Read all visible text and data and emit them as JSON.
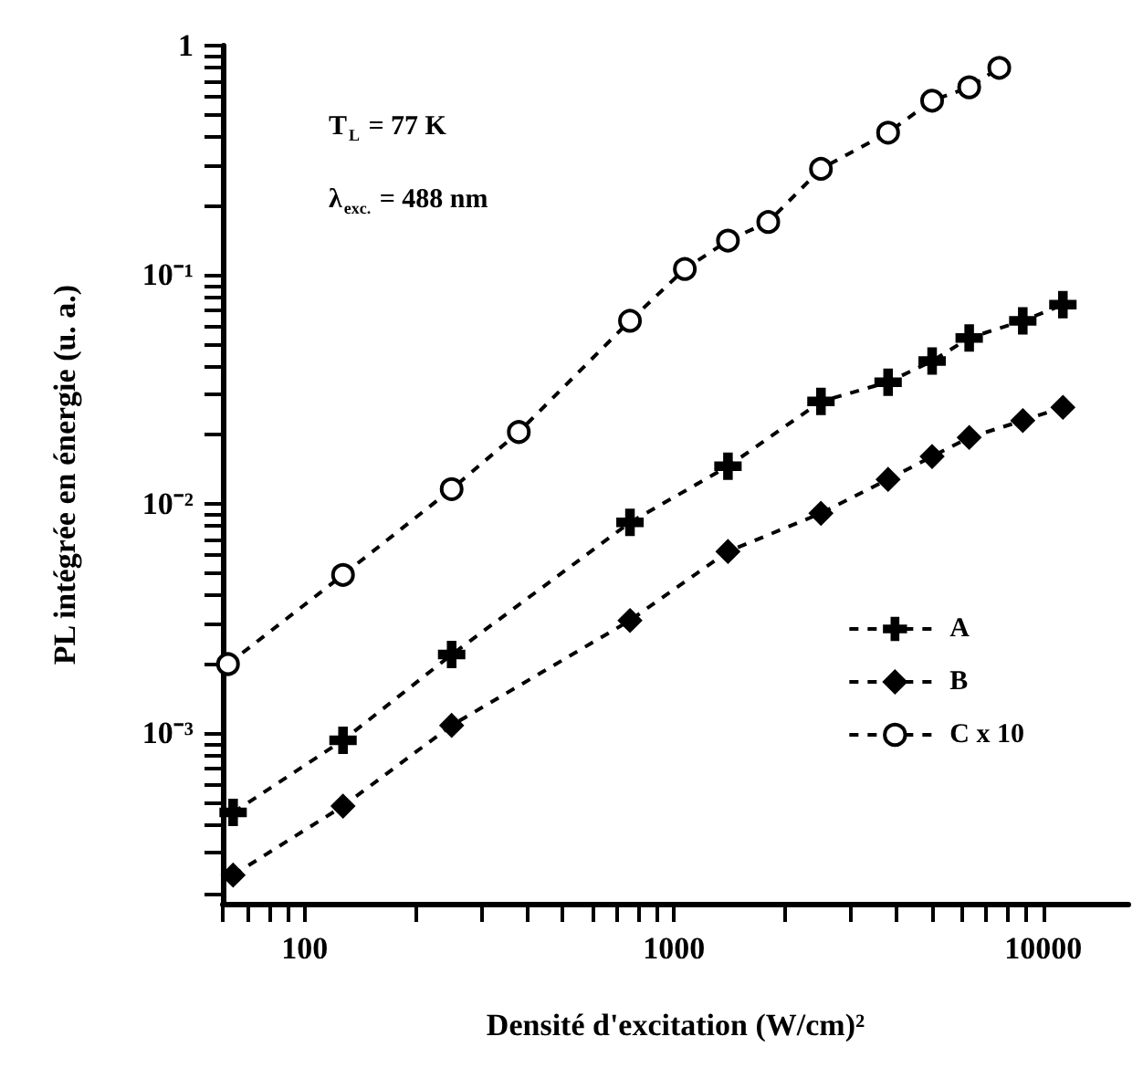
{
  "chart_data": {
    "type": "line",
    "xlabel": "Densité d'excitation (W/cm)²",
    "ylabel": "PL intégrée en énergie (u. a.)",
    "log": "xy",
    "line_style": "dashed",
    "grid": false,
    "legend": "bottom right",
    "annotations": [
      "T$_{L}$ = 77 K",
      "λ$_{exc.}$ = 488 nm"
    ],
    "xlim": [
      60,
      17000
    ],
    "ylim": [
      0.00018,
      1
    ],
    "xticks": [
      {
        "value": 60,
        "label": null
      },
      {
        "value": 70,
        "label": null
      },
      {
        "value": 80,
        "label": null
      },
      {
        "value": 90,
        "label": null
      },
      100,
      {
        "value": 200,
        "label": null
      },
      {
        "value": 300,
        "label": null
      },
      {
        "value": 400,
        "label": null
      },
      {
        "value": 500,
        "label": null
      },
      {
        "value": 600,
        "label": null
      },
      {
        "value": 700,
        "label": null
      },
      {
        "value": 800,
        "label": null
      },
      {
        "value": 900,
        "label": null
      },
      1000,
      {
        "value": 2000,
        "label": null
      },
      {
        "value": 3000,
        "label": null
      },
      {
        "value": 4000,
        "label": null
      },
      {
        "value": 5000,
        "label": null
      },
      {
        "value": 6000,
        "label": null
      },
      {
        "value": 7000,
        "label": null
      },
      {
        "value": 8000,
        "label": null
      },
      {
        "value": 9000,
        "label": null
      },
      10000
    ],
    "yticks": [
      {
        "value": 0.0002,
        "label": null
      },
      {
        "value": 0.0003,
        "label": null
      },
      {
        "value": 0.0004,
        "label": null
      },
      {
        "value": 0.0005,
        "label": null
      },
      {
        "value": 0.0006,
        "label": null
      },
      {
        "value": 0.0007,
        "label": null
      },
      {
        "value": 0.0008,
        "label": null
      },
      {
        "value": 0.0009,
        "label": null
      },
      {
        "value": 0.001,
        "label": "10⁻³"
      },
      {
        "value": 0.002,
        "label": null
      },
      {
        "value": 0.003,
        "label": null
      },
      {
        "value": 0.004,
        "label": null
      },
      {
        "value": 0.005,
        "label": null
      },
      {
        "value": 0.006,
        "label": null
      },
      {
        "value": 0.007,
        "label": null
      },
      {
        "value": 0.008,
        "label": null
      },
      {
        "value": 0.009,
        "label": null
      },
      {
        "value": 0.01,
        "label": "10⁻²"
      },
      {
        "value": 0.02,
        "label": null
      },
      {
        "value": 0.03,
        "label": null
      },
      {
        "value": 0.04,
        "label": null
      },
      {
        "value": 0.05,
        "label": null
      },
      {
        "value": 0.06,
        "label": null
      },
      {
        "value": 0.07,
        "label": null
      },
      {
        "value": 0.08,
        "label": null
      },
      {
        "value": 0.09,
        "label": null
      },
      {
        "value": 0.1,
        "label": "10⁻¹"
      },
      {
        "value": 0.2,
        "label": null
      },
      {
        "value": 0.3,
        "label": null
      },
      {
        "value": 0.4,
        "label": null
      },
      {
        "value": 0.5,
        "label": null
      },
      {
        "value": 0.6,
        "label": null
      },
      {
        "value": 0.7,
        "label": null
      },
      {
        "value": 0.8,
        "label": null
      },
      {
        "value": 0.9,
        "label": null
      },
      1
    ],
    "series": [
      {
        "name": "A",
        "color": "#000000",
        "marker": "cross",
        "x": [
          64,
          127,
          250,
          760,
          1400,
          2500,
          3800,
          5000,
          6300,
          8800,
          11300
        ],
        "values": [
          0.00045,
          0.00093,
          0.0022,
          0.0083,
          0.0146,
          0.028,
          0.034,
          0.042,
          0.053,
          0.063,
          0.074
        ]
      },
      {
        "name": "B",
        "color": "#000000",
        "marker": "diamond",
        "x": [
          64,
          127,
          250,
          760,
          1400,
          2500,
          3800,
          5000,
          6300,
          8800,
          11300
        ],
        "values": [
          0.00024,
          0.00048,
          0.00108,
          0.0031,
          0.0062,
          0.0091,
          0.0128,
          0.0161,
          0.0195,
          0.0231,
          0.0264
        ]
      },
      {
        "name": "C x 10",
        "color": "#000000",
        "marker": "circle",
        "x": [
          62,
          127,
          250,
          380,
          760,
          1070,
          1400,
          1800,
          2500,
          3800,
          5000,
          6300,
          7600
        ],
        "values": [
          0.002,
          0.0049,
          0.0116,
          0.0206,
          0.063,
          0.106,
          0.141,
          0.17,
          0.29,
          0.417,
          0.575,
          0.658,
          0.8
        ]
      }
    ]
  }
}
